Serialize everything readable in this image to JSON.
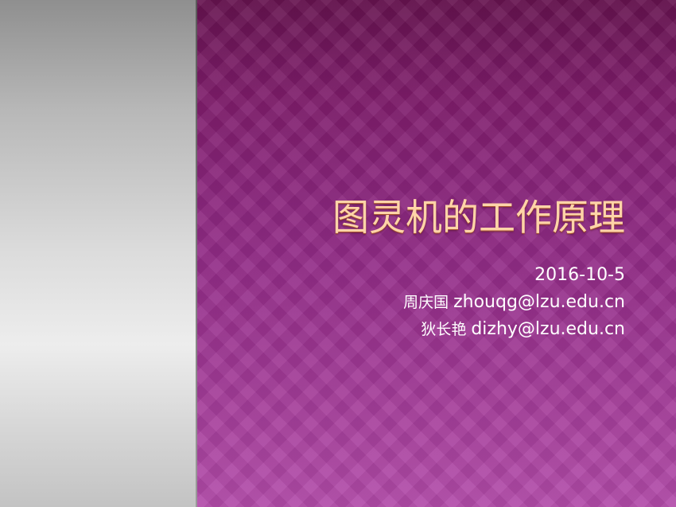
{
  "slide": {
    "title": "图灵机的工作原理",
    "date": "2016-10-5",
    "authors": [
      {
        "name": "周庆国",
        "email": "zhouqg@lzu.edu.cn"
      },
      {
        "name": "狄长艳",
        "email": "dizhy@lzu.edu.cn"
      }
    ]
  },
  "colors": {
    "title_text": "#ffd4a8",
    "body_text": "#ffffff",
    "background_purple": "#912b86",
    "left_panel_gray": "#dcdcdc"
  }
}
